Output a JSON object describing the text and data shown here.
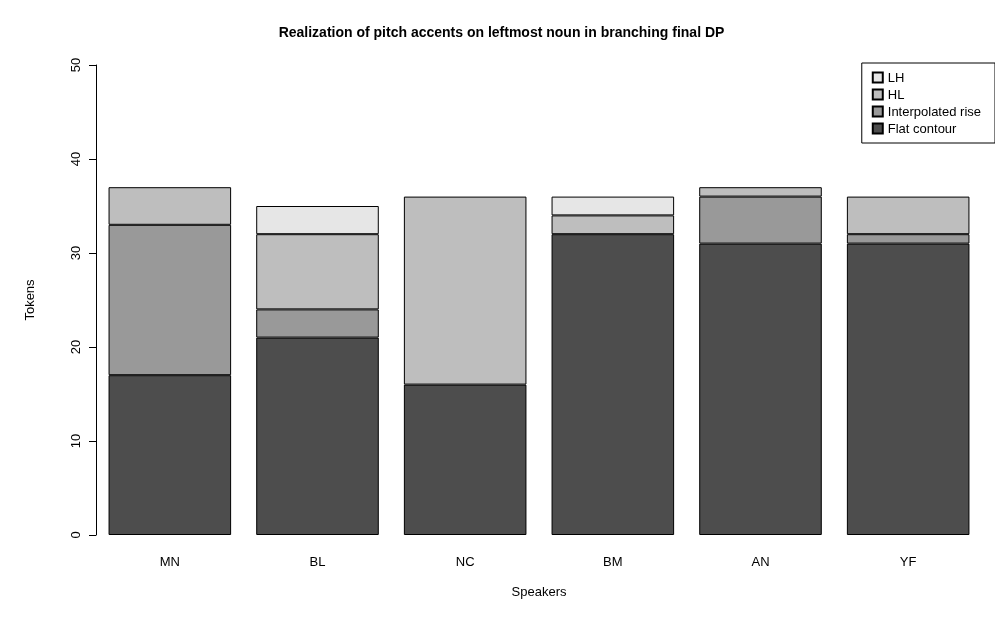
{
  "chart_data": {
    "type": "bar",
    "title": "Realization of pitch accents on leftmost noun in branching final DP",
    "xlabel": "Speakers",
    "ylabel": "Tokens",
    "categories": [
      "MN",
      "BL",
      "NC",
      "BM",
      "AN",
      "YF"
    ],
    "stacked": true,
    "series": [
      {
        "name": "Flat contour",
        "color": "#4d4d4d",
        "values": [
          17,
          21,
          16,
          32,
          31,
          31
        ]
      },
      {
        "name": "Interpolated rise",
        "color": "#999999",
        "values": [
          16,
          3,
          0,
          0,
          5,
          1
        ]
      },
      {
        "name": "HL",
        "color": "#bebebe",
        "values": [
          4,
          8,
          20,
          2,
          1,
          4
        ]
      },
      {
        "name": "LH",
        "color": "#e6e6e6",
        "values": [
          0,
          3,
          0,
          2,
          0,
          0
        ]
      }
    ],
    "ylim": [
      0,
      50
    ],
    "yticks": [
      0,
      10,
      20,
      30,
      40,
      50
    ],
    "grid": false,
    "legend": "top right"
  }
}
